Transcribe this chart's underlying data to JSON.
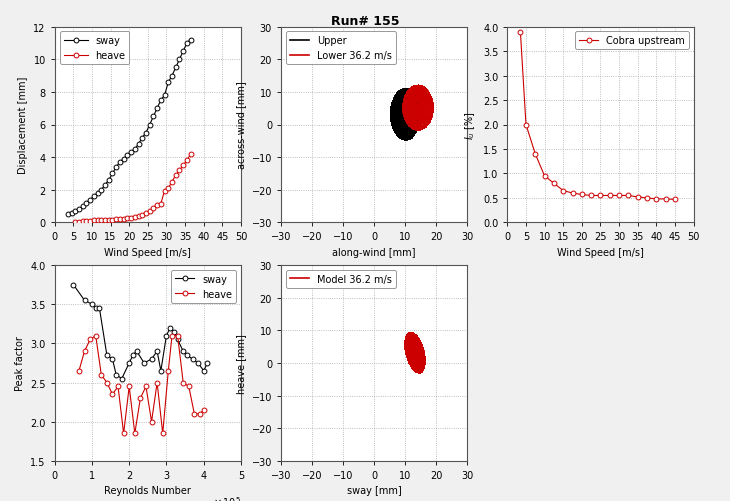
{
  "title": "Run# 155",
  "sway_wind_speed": [
    3.5,
    4.5,
    5.5,
    6.5,
    7.5,
    8.5,
    9.5,
    10.5,
    11.5,
    12.5,
    13.5,
    14.5,
    15.5,
    16.5,
    17.5,
    18.5,
    19.5,
    20.5,
    21.5,
    22.5,
    23.5,
    24.5,
    25.5,
    26.5,
    27.5,
    28.5,
    29.5,
    30.5,
    31.5,
    32.5,
    33.5,
    34.5,
    35.5,
    36.5
  ],
  "sway_disp": [
    0.5,
    0.6,
    0.7,
    0.8,
    1.0,
    1.2,
    1.4,
    1.6,
    1.8,
    2.0,
    2.3,
    2.6,
    3.0,
    3.4,
    3.7,
    3.9,
    4.1,
    4.3,
    4.5,
    4.8,
    5.2,
    5.5,
    6.0,
    6.5,
    7.0,
    7.5,
    7.8,
    8.6,
    9.0,
    9.5,
    10.0,
    10.5,
    11.0,
    11.2
  ],
  "heave_wind_speed": [
    5.5,
    6.5,
    7.5,
    8.5,
    9.5,
    10.5,
    11.5,
    12.5,
    13.5,
    14.5,
    15.5,
    16.5,
    17.5,
    18.5,
    19.5,
    20.5,
    21.5,
    22.5,
    23.5,
    24.5,
    25.5,
    26.5,
    27.5,
    28.5,
    29.5,
    30.5,
    31.5,
    32.5,
    33.5,
    34.5,
    35.5,
    36.5
  ],
  "heave_disp": [
    0.05,
    0.05,
    0.07,
    0.08,
    0.1,
    0.12,
    0.13,
    0.14,
    0.15,
    0.16,
    0.17,
    0.18,
    0.2,
    0.22,
    0.25,
    0.28,
    0.32,
    0.38,
    0.45,
    0.55,
    0.7,
    0.9,
    1.05,
    1.15,
    1.95,
    2.1,
    2.5,
    2.9,
    3.2,
    3.5,
    3.8,
    4.2
  ],
  "turbulence_wind_speed": [
    3.5,
    5.0,
    7.5,
    10.0,
    12.5,
    15.0,
    17.5,
    20.0,
    22.5,
    25.0,
    27.5,
    30.0,
    32.5,
    35.0,
    37.5,
    40.0,
    42.5,
    45.0
  ],
  "turbulence_Iu": [
    3.9,
    2.0,
    1.4,
    0.95,
    0.8,
    0.65,
    0.6,
    0.57,
    0.55,
    0.55,
    0.55,
    0.55,
    0.55,
    0.52,
    0.5,
    0.48,
    0.48,
    0.47
  ],
  "sway_Re": [
    50000.0,
    80000.0,
    100000.0,
    110000.0,
    120000.0,
    140000.0,
    155000.0,
    165000.0,
    180000.0,
    200000.0,
    210000.0,
    220000.0,
    240000.0,
    260000.0,
    275000.0,
    285000.0,
    300000.0,
    310000.0,
    320000.0,
    330000.0,
    345000.0,
    355000.0,
    370000.0,
    385000.0,
    400000.0,
    410000.0
  ],
  "sway_peak": [
    3.75,
    3.55,
    3.5,
    3.45,
    3.45,
    2.85,
    2.8,
    2.6,
    2.55,
    2.75,
    2.85,
    2.9,
    2.75,
    2.8,
    2.9,
    2.65,
    3.1,
    3.2,
    3.15,
    3.05,
    2.9,
    2.85,
    2.8,
    2.75,
    2.65,
    2.75
  ],
  "heave_Re": [
    65000.0,
    80000.0,
    95000.0,
    110000.0,
    125000.0,
    140000.0,
    155000.0,
    170000.0,
    185000.0,
    200000.0,
    215000.0,
    230000.0,
    245000.0,
    260000.0,
    275000.0,
    290000.0,
    305000.0,
    315000.0,
    330000.0,
    345000.0,
    360000.0,
    375000.0,
    390000.0,
    400000.0
  ],
  "heave_peak": [
    2.65,
    2.9,
    3.05,
    3.1,
    2.6,
    2.5,
    2.35,
    2.45,
    1.85,
    2.45,
    1.85,
    2.3,
    2.45,
    2.0,
    2.5,
    1.85,
    2.65,
    3.1,
    3.1,
    2.5,
    2.45,
    2.1,
    2.1,
    2.15
  ],
  "fig_facecolor": "#f0f0f0",
  "axes_facecolor": "#ffffff",
  "sway_color": "#000000",
  "heave_color": "#cc0000",
  "cobra_color": "#cc0000",
  "upper_color": "#000000",
  "lower_color": "#cc0000",
  "model_color": "#cc0000",
  "grid_color": "#aaaaaa",
  "title_fontsize": 9,
  "label_fontsize": 7,
  "tick_fontsize": 7,
  "legend_fontsize": 7
}
